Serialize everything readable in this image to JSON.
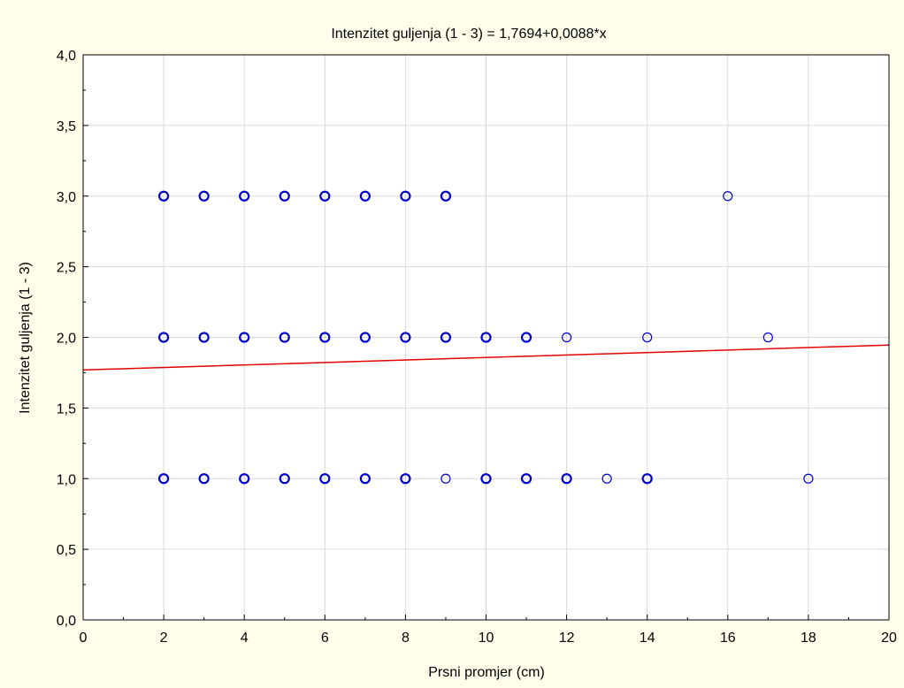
{
  "chart_data": {
    "type": "scatter",
    "title": "Intenzitet guljenja (1 - 3) = 1,7694+0,0088*x",
    "xlabel": "Prsni promjer (cm)",
    "ylabel": "Intenzitet guljenja (1 - 3)",
    "xlim": [
      0,
      20
    ],
    "ylim": [
      0,
      4
    ],
    "x_ticks": [
      0,
      2,
      4,
      6,
      8,
      10,
      12,
      14,
      16,
      18,
      20
    ],
    "x_tick_labels": [
      "0",
      "2",
      "4",
      "6",
      "8",
      "10",
      "12",
      "14",
      "16",
      "18",
      "20"
    ],
    "y_ticks": [
      0,
      0.5,
      1,
      1.5,
      2,
      2.5,
      3,
      3.5,
      4
    ],
    "y_tick_labels": [
      "0,0",
      "0,5",
      "1,0",
      "1,5",
      "2,0",
      "2,5",
      "3,0",
      "3,5",
      "4,0"
    ],
    "grid": true,
    "points": [
      {
        "x": 2,
        "y": 3,
        "bold": true
      },
      {
        "x": 3,
        "y": 3,
        "bold": true
      },
      {
        "x": 4,
        "y": 3,
        "bold": true
      },
      {
        "x": 5,
        "y": 3,
        "bold": true
      },
      {
        "x": 6,
        "y": 3,
        "bold": true
      },
      {
        "x": 7,
        "y": 3,
        "bold": true
      },
      {
        "x": 8,
        "y": 3,
        "bold": true
      },
      {
        "x": 9,
        "y": 3,
        "bold": true
      },
      {
        "x": 16,
        "y": 3,
        "bold": false
      },
      {
        "x": 2,
        "y": 2,
        "bold": true
      },
      {
        "x": 3,
        "y": 2,
        "bold": true
      },
      {
        "x": 4,
        "y": 2,
        "bold": true
      },
      {
        "x": 5,
        "y": 2,
        "bold": true
      },
      {
        "x": 6,
        "y": 2,
        "bold": true
      },
      {
        "x": 7,
        "y": 2,
        "bold": true
      },
      {
        "x": 8,
        "y": 2,
        "bold": true
      },
      {
        "x": 9,
        "y": 2,
        "bold": true
      },
      {
        "x": 10,
        "y": 2,
        "bold": true
      },
      {
        "x": 11,
        "y": 2,
        "bold": true
      },
      {
        "x": 12,
        "y": 2,
        "bold": false
      },
      {
        "x": 14,
        "y": 2,
        "bold": false
      },
      {
        "x": 17,
        "y": 2,
        "bold": false
      },
      {
        "x": 2,
        "y": 1,
        "bold": true
      },
      {
        "x": 3,
        "y": 1,
        "bold": true
      },
      {
        "x": 4,
        "y": 1,
        "bold": true
      },
      {
        "x": 5,
        "y": 1,
        "bold": true
      },
      {
        "x": 6,
        "y": 1,
        "bold": true
      },
      {
        "x": 7,
        "y": 1,
        "bold": true
      },
      {
        "x": 8,
        "y": 1,
        "bold": true
      },
      {
        "x": 9,
        "y": 1,
        "bold": false
      },
      {
        "x": 10,
        "y": 1,
        "bold": true
      },
      {
        "x": 11,
        "y": 1,
        "bold": true
      },
      {
        "x": 12,
        "y": 1,
        "bold": true
      },
      {
        "x": 13,
        "y": 1,
        "bold": false
      },
      {
        "x": 14,
        "y": 1,
        "bold": true
      },
      {
        "x": 18,
        "y": 1,
        "bold": false
      }
    ],
    "regression": {
      "intercept": 1.7694,
      "slope": 0.0088
    },
    "colors": {
      "background": "#FFFFEC",
      "plot_background": "#FFFFFF",
      "grid": "#D9D9D9",
      "points": "#0000CC",
      "regression_line": "#E00000"
    }
  }
}
